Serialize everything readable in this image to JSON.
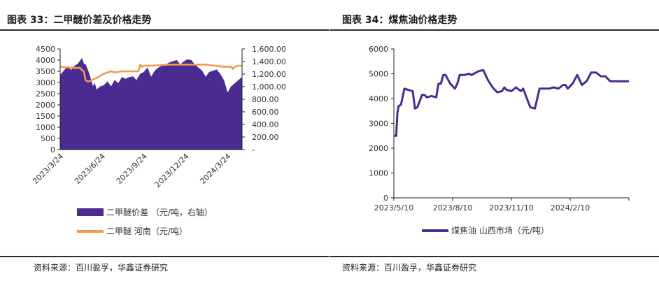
{
  "left": {
    "title": "图表 33：二甲醚价差及价格走势",
    "source": "资料来源：百川盈孚，华鑫证券研究",
    "legend": [
      "二甲醚价差 （元/吨，右轴）",
      "二甲醚 河南（元/吨）"
    ]
  },
  "right": {
    "title": "图表 34：煤焦油价格走势",
    "source": "资料来源：百川盈孚，华鑫证券研究",
    "legend": [
      "煤焦油 山西市场（元/吨）"
    ]
  },
  "colors": {
    "spread": "#4b2a91",
    "price": "#f39a4e",
    "coal": "#4b2a91",
    "axis": "#222222"
  },
  "chart_data": [
    {
      "type": "bar",
      "title": "二甲醚价差及价格走势",
      "x_ticks": [
        "2023/3/24",
        "2023/6/24",
        "2023/9/24",
        "2023/12/24",
        "2024/3/24"
      ],
      "y_left": {
        "ticks": [
          "0",
          "500",
          "1000",
          "1500",
          "2000",
          "2500",
          "3000",
          "3500",
          "4000",
          "4500"
        ],
        "range": [
          0,
          4500
        ]
      },
      "y_right": {
        "ticks": [
          "-",
          "200.00",
          "400.00",
          "600.00",
          "800.00",
          "1,000.00",
          "1,200.00",
          "1,400.00",
          "1,600.00"
        ],
        "range": [
          0,
          1600
        ]
      },
      "series": [
        {
          "name": "二甲醚价差 （元/吨，右轴）",
          "type": "area",
          "axis": "right",
          "x": [
            0,
            2,
            4,
            6,
            8,
            10,
            12,
            13,
            14,
            16,
            17,
            18,
            19,
            20,
            22,
            24,
            25,
            26,
            28,
            30,
            32,
            34,
            36,
            38,
            40,
            42,
            44,
            46,
            48,
            50,
            52,
            54,
            56,
            58,
            60,
            62,
            64,
            66,
            68,
            70,
            72,
            74,
            76,
            78,
            80,
            82,
            84,
            86,
            88,
            90,
            92,
            94,
            96,
            98,
            100
          ],
          "values": [
            1180,
            1250,
            1320,
            1260,
            1330,
            1370,
            1450,
            1360,
            1350,
            1200,
            1100,
            1000,
            1050,
            950,
            1000,
            1020,
            1050,
            1080,
            1000,
            1100,
            1050,
            1150,
            1120,
            1150,
            1160,
            1100,
            1200,
            1230,
            1300,
            1150,
            1250,
            1300,
            1330,
            1350,
            1380,
            1400,
            1420,
            1350,
            1400,
            1430,
            1420,
            1350,
            1300,
            1250,
            1150,
            1230,
            1250,
            1270,
            1200,
            1100,
            900,
            1000,
            1050,
            1100,
            1150
          ]
        },
        {
          "name": "二甲醚 河南（元/吨）",
          "type": "line",
          "axis": "left",
          "x": [
            0,
            8,
            11,
            12,
            13,
            14,
            15,
            16,
            17,
            20,
            23,
            26,
            28,
            30,
            34,
            38,
            40,
            42,
            43,
            44,
            45,
            46,
            50,
            60,
            70,
            80,
            90,
            94,
            95,
            96,
            98,
            100
          ],
          "values": [
            3700,
            3650,
            3650,
            3550,
            3500,
            3100,
            3050,
            3050,
            3100,
            3200,
            3350,
            3450,
            3500,
            3450,
            3500,
            3500,
            3500,
            3500,
            3500,
            3800,
            3700,
            3750,
            3750,
            3800,
            3800,
            3800,
            3700,
            3700,
            3600,
            3700,
            3750,
            3750
          ]
        }
      ]
    },
    {
      "type": "line",
      "title": "煤焦油价格走势",
      "x_ticks": [
        "2023/5/10",
        "2023/8/10",
        "2023/11/10",
        "2024/2/10"
      ],
      "y": {
        "ticks": [
          "0",
          "1000",
          "2000",
          "3000",
          "4000",
          "5000",
          "6000"
        ],
        "range": [
          0,
          6000
        ]
      },
      "series": [
        {
          "name": "煤焦油 山西市场（元/吨）",
          "x": [
            0,
            1,
            1.5,
            2,
            3,
            3.8,
            4.5,
            6,
            8,
            9,
            10,
            11,
            12,
            13,
            14,
            16,
            18,
            19,
            20,
            21,
            22,
            24,
            26,
            27,
            28,
            30,
            32,
            33,
            34,
            35,
            36,
            38,
            40,
            42,
            44,
            46,
            47,
            48,
            50,
            52,
            54,
            55,
            56,
            58,
            60,
            62,
            63,
            64,
            66,
            68,
            70,
            72,
            73,
            74,
            76,
            78,
            80,
            82,
            84,
            86,
            88,
            90,
            92,
            94,
            96,
            97,
            100
          ],
          "values": [
            2500,
            2500,
            3400,
            3700,
            3750,
            4100,
            4400,
            4350,
            4300,
            3600,
            3650,
            3900,
            4150,
            4150,
            4050,
            4100,
            4050,
            4600,
            4600,
            4950,
            4950,
            4600,
            4400,
            4600,
            4950,
            4950,
            5000,
            4950,
            5000,
            5050,
            5100,
            5150,
            4750,
            4450,
            4250,
            4300,
            4450,
            4350,
            4300,
            4450,
            4300,
            4400,
            4150,
            3650,
            3600,
            4400,
            4400,
            4400,
            4400,
            4450,
            4400,
            4550,
            4550,
            4400,
            4600,
            4950,
            4550,
            4700,
            5050,
            5050,
            4900,
            4900,
            4700,
            4700,
            4700,
            4700,
            4700
          ]
        }
      ]
    }
  ]
}
